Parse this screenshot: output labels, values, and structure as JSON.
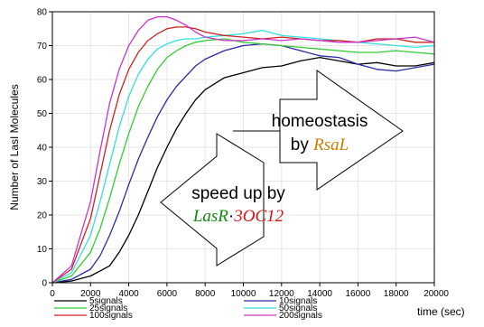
{
  "chart_data": {
    "type": "line",
    "ylabel": "Number of LasI Molecules",
    "xlabel": "time (sec)",
    "xlim": [
      0,
      20000
    ],
    "ylim": [
      0,
      80
    ],
    "xticks": [
      "0",
      "2000",
      "4000",
      "6000",
      "8000",
      "10000",
      "12000",
      "14000",
      "16000",
      "18000",
      "20000"
    ],
    "yticks": [
      "0",
      "10",
      "20",
      "30",
      "40",
      "50",
      "60",
      "70",
      "80"
    ],
    "x": [
      0,
      1000,
      2000,
      2500,
      3000,
      3500,
      4000,
      4500,
      5000,
      5500,
      6000,
      6500,
      7000,
      7500,
      8000,
      9000,
      10000,
      11000,
      12000,
      13000,
      14000,
      15000,
      16000,
      17000,
      18000,
      19000,
      20000
    ],
    "series": [
      {
        "name": "5signals",
        "color": "#000000",
        "values": [
          0,
          0.5,
          2,
          3.5,
          5,
          9,
          14,
          20,
          27,
          34,
          40,
          45.5,
          50,
          54,
          57,
          60.5,
          62,
          63.5,
          64,
          65.5,
          66.5,
          65.5,
          64.5,
          65,
          64,
          64,
          65
        ]
      },
      {
        "name": "10signals",
        "color": "#2a2aa8",
        "values": [
          0,
          1,
          4,
          8,
          14,
          21,
          29,
          36.5,
          43,
          49,
          54,
          58,
          61,
          64,
          66,
          68.5,
          70,
          70.5,
          70,
          68.5,
          67,
          66.5,
          64.5,
          63,
          62.5,
          63.5,
          64.5
        ]
      },
      {
        "name": "25signals",
        "color": "#33cc33",
        "values": [
          0,
          2,
          9,
          16,
          25,
          35,
          44,
          52,
          58,
          63,
          66.5,
          68.5,
          70,
          71,
          71.5,
          72,
          71,
          70.5,
          70,
          69.5,
          69,
          68.5,
          68,
          68,
          68.5,
          68,
          67.5
        ]
      },
      {
        "name": "50signals",
        "color": "#33e0e0",
        "values": [
          0,
          3,
          14,
          24,
          35,
          46,
          55,
          61.5,
          66,
          69,
          70.5,
          71.5,
          72,
          72,
          72.5,
          73,
          73.5,
          74.5,
          73,
          72.5,
          72,
          71.5,
          71,
          70.5,
          70,
          69.5,
          70
        ]
      },
      {
        "name": "100signals",
        "color": "#cc2222",
        "values": [
          0,
          4,
          19,
          32,
          45,
          55.5,
          63,
          68,
          71.5,
          73.5,
          75,
          75.5,
          75.5,
          75,
          74,
          73,
          72.5,
          72,
          72.5,
          72,
          71.5,
          71.5,
          71,
          72,
          72,
          71,
          71
        ]
      },
      {
        "name": "200signals",
        "color": "#cc33cc",
        "values": [
          0,
          5,
          24,
          39,
          53,
          63,
          70,
          74.5,
          77.5,
          78.5,
          78.5,
          77.5,
          76,
          74,
          72.5,
          71.5,
          71.5,
          72,
          71.5,
          72,
          71.5,
          71,
          71,
          71.5,
          72,
          72.5,
          71
        ]
      }
    ],
    "legend": [
      "5signals",
      "10signals",
      "25signals",
      "50signals",
      "100signals",
      "200signals"
    ],
    "legend_placement": "bottom",
    "annotations": {
      "homeostasis_line1": "homeostasis",
      "homeostasis_by": "by ",
      "rsal": "RsaL",
      "rsal_color": "#cc7a00",
      "speedup_line1": "speed up by",
      "lasr": "LasR",
      "lasr_color": "#118811",
      "dot": "·",
      "oc12": "3OC12",
      "oc12_color": "#dd1111"
    }
  }
}
